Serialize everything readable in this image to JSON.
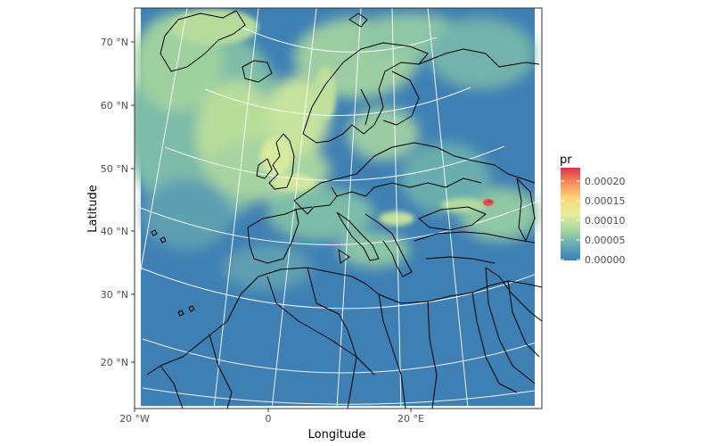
{
  "plot": {
    "xlabel": "Longitude",
    "ylabel": "Latitude",
    "x_ticks": [
      "20 °W",
      "0",
      "20 °E"
    ],
    "y_ticks": [
      "70 °N",
      "60 °N",
      "50 °N",
      "40 °N",
      "30 °N",
      "20 °N"
    ]
  },
  "legend": {
    "title": "pr",
    "labels": [
      "0.00020",
      "0.00015",
      "0.00010",
      "0.00005",
      "0.00000"
    ],
    "colors": [
      "#3a7db6",
      "#63a8b5",
      "#a8d5a0",
      "#e7ef9a",
      "#fbd57a",
      "#f78d5a",
      "#d8354a"
    ]
  },
  "colors": {
    "ocean_dry": "#3f80b4",
    "mid": "#70b3ac",
    "wet": "#c4e39c",
    "border": "#000000",
    "graticule": "#ffffff",
    "panel_border": "#333333"
  }
}
